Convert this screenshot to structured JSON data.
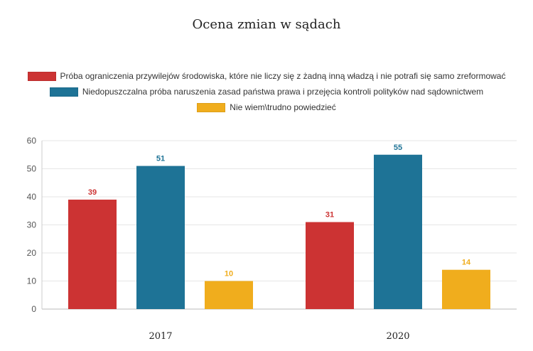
{
  "chart_data": {
    "type": "bar",
    "title": "Ocena zmian w sądach",
    "categories": [
      "2017",
      "2020"
    ],
    "series": [
      {
        "name": "Próba ograniczenia przywilejów środowiska, które nie liczy się z żadną inną władzą i nie potrafi się samo zreformować",
        "values": [
          39,
          31
        ],
        "color": "#cc3333"
      },
      {
        "name": "Niedopuszczalna próba naruszenia zasad państwa prawa i przejęcia kontroli polityków nad sądownictwem",
        "values": [
          51,
          55
        ],
        "color": "#1e7396"
      },
      {
        "name": "Nie wiem\\trudno powiedzieć",
        "values": [
          10,
          14
        ],
        "color": "#f0ad1d"
      }
    ],
    "ylim": [
      0,
      60
    ],
    "yticks": [
      0,
      10,
      20,
      30,
      40,
      50,
      60
    ],
    "grid": true,
    "legend_position": "top"
  }
}
